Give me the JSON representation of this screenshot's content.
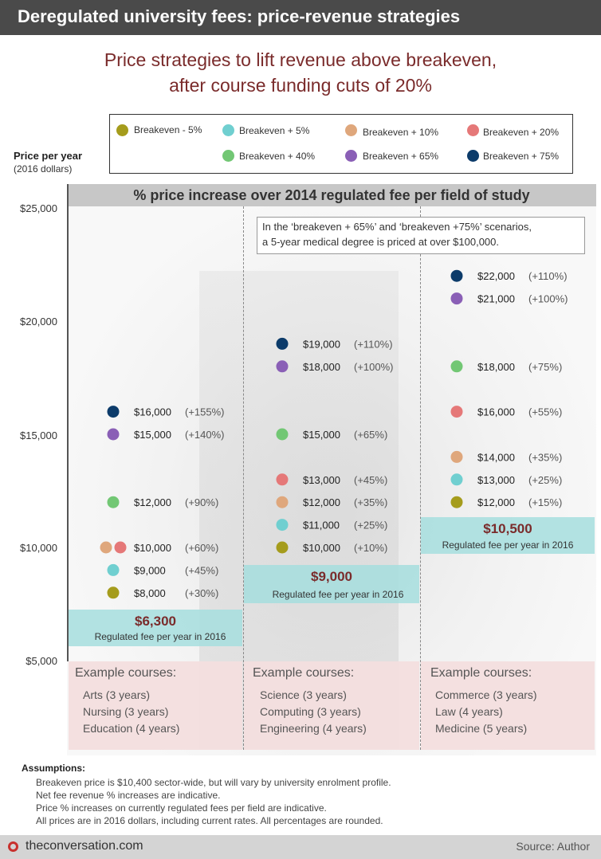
{
  "header": {
    "title": "Deregulated university fees: price-revenue strategies"
  },
  "subtitle": [
    "Price strategies to lift revenue above breakeven,",
    "after course funding cuts of 20%"
  ],
  "legend": [
    {
      "label": "Breakeven - 5%",
      "color": "#a59c1c"
    },
    {
      "label": "Breakeven + 5%",
      "color": "#70cfd0"
    },
    {
      "label": "Breakeven + 10%",
      "color": "#dfa77c"
    },
    {
      "label": "Breakeven + 20%",
      "color": "#e57878"
    },
    {
      "label": "Breakeven + 40%",
      "color": "#72c774"
    },
    {
      "label": "Breakeven + 65%",
      "color": "#8a5fb6"
    },
    {
      "label": "Breakeven + 75%",
      "color": "#0c3b6a"
    }
  ],
  "y_axis": {
    "title": "Price per year",
    "subtitle": "(2016 dollars)",
    "ticks": [
      "$25,000",
      "$20,000",
      "$15,000",
      "$10,000",
      "$5,000"
    ]
  },
  "panel_header": "% price increase over 2014 regulated fee per field of study",
  "note": [
    "In the ‘breakeven + 65%’ and ‘breakeven +75%’ scenarios,",
    "a 5-year medical degree is priced at over $100,000."
  ],
  "regulated_label": "Regulated fee per year in 2016",
  "example_title": "Example courses:",
  "columns": [
    {
      "regulated": "$6,300",
      "courses": [
        "Arts (3 years)",
        "Nursing (3 years)",
        "Education (4 years)"
      ]
    },
    {
      "regulated": "$9,000",
      "courses": [
        "Science (3 years)",
        "Computing (3 years)",
        "Engineering (4 years)"
      ]
    },
    {
      "regulated": "$10,500",
      "courses": [
        "Commerce (3 years)",
        "Law (4 years)",
        "Medicine (5 years)"
      ]
    }
  ],
  "chart_data": {
    "type": "scatter",
    "ylabel": "Price per year",
    "ylim": [
      5000,
      25000
    ],
    "categories": [
      "Arts, Nursing, Education",
      "Science, Computing, Engineering",
      "Commerce, Law, Medicine"
    ],
    "regulated_fee_2016": [
      6300,
      9000,
      10500
    ],
    "series": [
      {
        "name": "Breakeven - 5%",
        "values": [
          8000,
          10000,
          12000
        ],
        "labels": [
          "$8,000",
          "$10,000",
          "$12,000"
        ],
        "pct": [
          "(+30%)",
          "(+10%)",
          "(+15%)"
        ]
      },
      {
        "name": "Breakeven + 5%",
        "values": [
          9000,
          11000,
          13000
        ],
        "labels": [
          "$9,000",
          "$11,000",
          "$13,000"
        ],
        "pct": [
          "(+45%)",
          "(+25%)",
          "(+25%)"
        ]
      },
      {
        "name": "Breakeven + 10%",
        "values": [
          10000,
          12000,
          14000
        ],
        "labels": [
          "$10,000",
          "$12,000",
          "$14,000"
        ],
        "pct": [
          "(+60%)",
          "(+35%)",
          "(+35%)"
        ]
      },
      {
        "name": "Breakeven + 20%",
        "values": [
          10000,
          13000,
          16000
        ],
        "labels": [
          "",
          "$13,000",
          "$16,000"
        ],
        "pct": [
          "",
          "(+45%)",
          "(+55%)"
        ]
      },
      {
        "name": "Breakeven + 40%",
        "values": [
          12000,
          15000,
          18000
        ],
        "labels": [
          "$12,000",
          "$15,000",
          "$18,000"
        ],
        "pct": [
          "(+90%)",
          "(+65%)",
          "(+75%)"
        ]
      },
      {
        "name": "Breakeven + 65%",
        "values": [
          15000,
          18000,
          21000
        ],
        "labels": [
          "$15,000",
          "$18,000",
          "$21,000"
        ],
        "pct": [
          "(+140%)",
          "(+100%)",
          "(+100%)"
        ]
      },
      {
        "name": "Breakeven + 75%",
        "values": [
          16000,
          19000,
          22000
        ],
        "labels": [
          "$16,000",
          "$19,000",
          "$22,000"
        ],
        "pct": [
          "(+155%)",
          "(+110%)",
          "(+110%)"
        ]
      }
    ]
  },
  "assumptions": {
    "title": "Assumptions:",
    "items": [
      "Breakeven price is $10,400 sector-wide, but will vary by university enrolment profile.",
      "Net fee revenue % increases are indicative.",
      "Price % increases on currently regulated fees per field are indicative.",
      "All prices are in 2016 dollars, including current rates. All percentages are rounded."
    ]
  },
  "footer": {
    "site": "theconversation.com",
    "source": "Source: Author"
  }
}
